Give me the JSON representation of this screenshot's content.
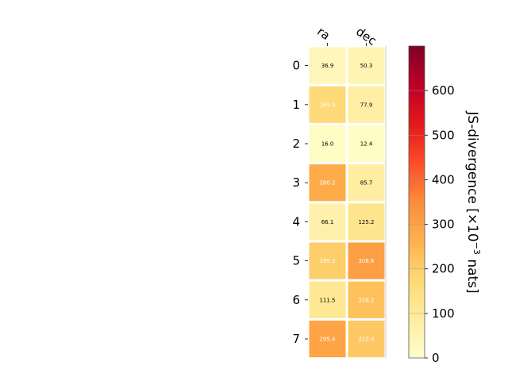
{
  "chart_data": {
    "type": "heatmap",
    "x_labels": [
      "ra",
      "dec"
    ],
    "y_labels": [
      "0",
      "1",
      "2",
      "3",
      "4",
      "5",
      "6",
      "7"
    ],
    "values": [
      [
        36.9,
        50.3
      ],
      [
        169.3,
        77.9
      ],
      [
        16.0,
        12.4
      ],
      [
        280.2,
        85.7
      ],
      [
        66.1,
        125.2
      ],
      [
        199.3,
        308.6
      ],
      [
        111.5,
        228.2
      ],
      [
        295.4,
        212.4
      ]
    ],
    "cell_labels": [
      [
        "36.9",
        "50.3"
      ],
      [
        "169.3",
        "77.9"
      ],
      [
        "16.0",
        "12.4"
      ],
      [
        "280.2",
        "85.7"
      ],
      [
        "66.1",
        "125.2"
      ],
      [
        "199.3",
        "308.6"
      ],
      [
        "111.5",
        "228.2"
      ],
      [
        "295.4",
        "212.4"
      ]
    ],
    "colormap": "YlOrRd",
    "colorbar": {
      "range": [
        0,
        700
      ],
      "ticks": [
        "0",
        "100",
        "200",
        "300",
        "400",
        "500",
        "600"
      ],
      "tick_values": [
        0,
        100,
        200,
        300,
        400,
        500,
        600
      ],
      "label_prefix": "JS-divergence [×10",
      "label_exp": "−3",
      "label_suffix": " nats]"
    },
    "label_dark_color": "#000000",
    "label_light_color": "#ffffff",
    "label_threshold": 150
  }
}
